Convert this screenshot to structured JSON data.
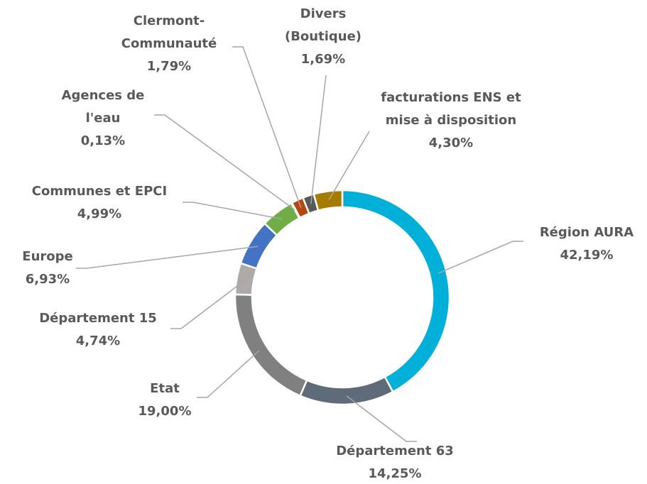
{
  "chart_data": {
    "type": "donut",
    "categories": [
      "Région AURA",
      "Département 63",
      "Etat",
      "Département 15",
      "Europe",
      "Communes et EPCI",
      "Agences de l'eau",
      "Clermont-Communauté",
      "Divers (Boutique)",
      "facturations ENS et mise à disposition"
    ],
    "values": [
      42.19,
      14.25,
      19.0,
      4.74,
      6.93,
      4.99,
      0.13,
      1.79,
      1.69,
      4.3
    ],
    "value_labels": [
      "42,19%",
      "14,25%",
      "19,00%",
      "4,74%",
      "6,93%",
      "4,99%",
      "0,13%",
      "1,79%",
      "1,69%",
      "4,30%"
    ],
    "colors": [
      "#00b0d8",
      "#5f6b78",
      "#808080",
      "#aeaaaa",
      "#4472c4",
      "#70ad47",
      "#c0504d",
      "#b5470f",
      "#595959",
      "#a67c00"
    ]
  }
}
